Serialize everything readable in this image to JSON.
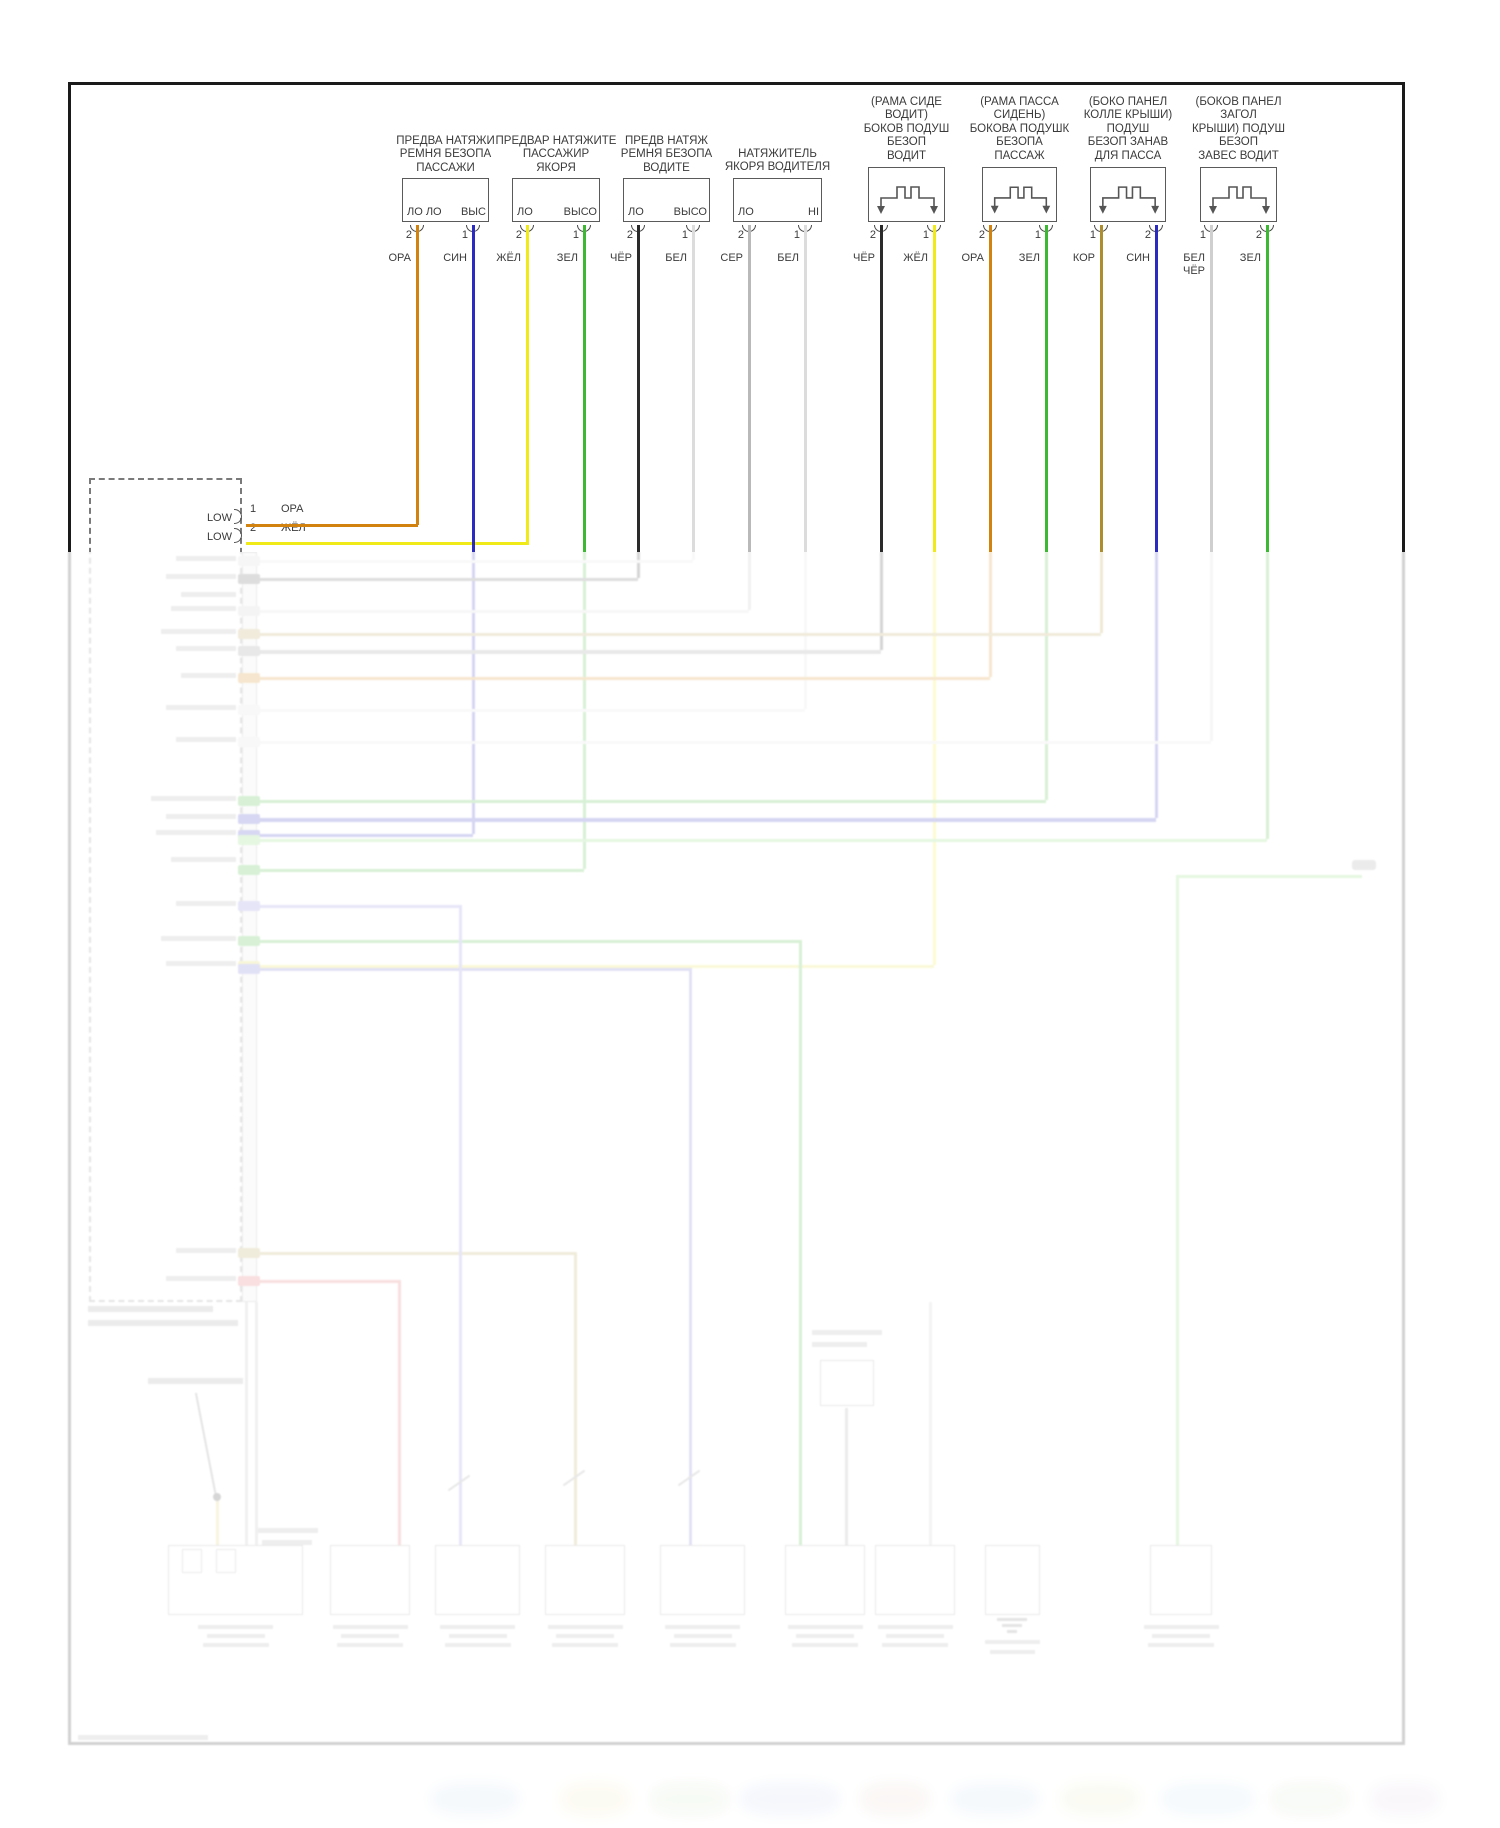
{
  "diagram": {
    "connectors": [
      {
        "label_lines": [
          "ПРЕДВА НАТЯЖИ",
          "РЕМНЯ БЕЗОПА",
          "ПАССАЖИ"
        ],
        "squib": false,
        "pins": [
          {
            "num": "2",
            "socket": "ЛО ЛО",
            "color_name": "ОРА",
            "color": "#d2830f"
          },
          {
            "num": "1",
            "socket": "ВЫС",
            "color_name": "СИН",
            "color": "#2b2bc0"
          }
        ]
      },
      {
        "label_lines": [
          "ПРЕДВАР НАТЯЖИТЕ",
          "ПАССАЖИР",
          "ЯКОРЯ"
        ],
        "squib": false,
        "pins": [
          {
            "num": "2",
            "socket": "ЛО",
            "color_name": "ЖЁЛ",
            "color": "#f0ea18"
          },
          {
            "num": "1",
            "socket": "ВЫСО",
            "color_name": "ЗЕЛ",
            "color": "#3cb832"
          }
        ]
      },
      {
        "label_lines": [
          "ПРЕДВ НАТЯЖ",
          "РЕМНЯ БЕЗОПА",
          "ВОДИТЕ"
        ],
        "squib": false,
        "pins": [
          {
            "num": "2",
            "socket": "ЛО",
            "color_name": "ЧЁР",
            "color": "#2a2a2a"
          },
          {
            "num": "1",
            "socket": "ВЫСО",
            "color_name": "БЕЛ",
            "color": "#dcdcdc"
          }
        ]
      },
      {
        "label_lines": [
          "НАТЯЖИТЕЛЬ",
          "ЯКОРЯ ВОДИТЕЛЯ"
        ],
        "squib": false,
        "pins": [
          {
            "num": "2",
            "socket": "ЛО",
            "color_name": "СЕР",
            "color": "#b9b9b9"
          },
          {
            "num": "1",
            "socket": "HI",
            "color_name": "БЕЛ",
            "color": "#dcdcdc"
          }
        ]
      },
      {
        "label_lines": [
          "(РАМА СИДЕ",
          "ВОДИТ)",
          "БОКОВ ПОДУШ",
          "БЕЗОП",
          "ВОДИТ"
        ],
        "squib": true,
        "pins": [
          {
            "num": "2",
            "color_name": "ЧЁР",
            "color": "#2a2a2a"
          },
          {
            "num": "1",
            "color_name": "ЖЁЛ",
            "color": "#f0ea18"
          }
        ]
      },
      {
        "label_lines": [
          "(РАМА ПАССА",
          "СИДЕНЬ)",
          "БОКОВА ПОДУШК",
          "БЕЗОПА",
          "ПАССАЖ"
        ],
        "squib": true,
        "pins": [
          {
            "num": "2",
            "color_name": "ОРА",
            "color": "#d2830f"
          },
          {
            "num": "1",
            "color_name": "ЗЕЛ",
            "color": "#3cb832"
          }
        ]
      },
      {
        "label_lines": [
          "(БОКО ПАНЕЛ",
          "КОЛЛЕ КРЫШИ)",
          "ПОДУШ",
          "БЕЗОП ЗАНАВ",
          "ДЛЯ ПАССА"
        ],
        "squib": true,
        "pins": [
          {
            "num": "1",
            "color_name": "КОР",
            "color": "#ad8d2e"
          },
          {
            "num": "2",
            "color_name": "СИН",
            "color": "#2b2bc0"
          }
        ]
      },
      {
        "label_lines": [
          "(БОКОВ ПАНЕЛ",
          "ЗАГОЛ",
          "КРЫШИ) ПОДУШ",
          "БЕЗОП",
          "ЗАВЕС ВОДИТ"
        ],
        "squib": true,
        "pins": [
          {
            "num": "1",
            "color_name_lines": [
              "БЕЛ",
              "ЧЁР"
            ],
            "color": "#cfcfcf"
          },
          {
            "num": "2",
            "color_name": "ЗЕЛ",
            "color": "#3cb832"
          }
        ]
      }
    ],
    "low_connector": {
      "rows": [
        {
          "label": "LOW",
          "pin": "1",
          "color_name": "ОРА"
        },
        {
          "label": "LOW",
          "pin": "2",
          "color_name": "ЖЁЛ"
        }
      ]
    }
  }
}
